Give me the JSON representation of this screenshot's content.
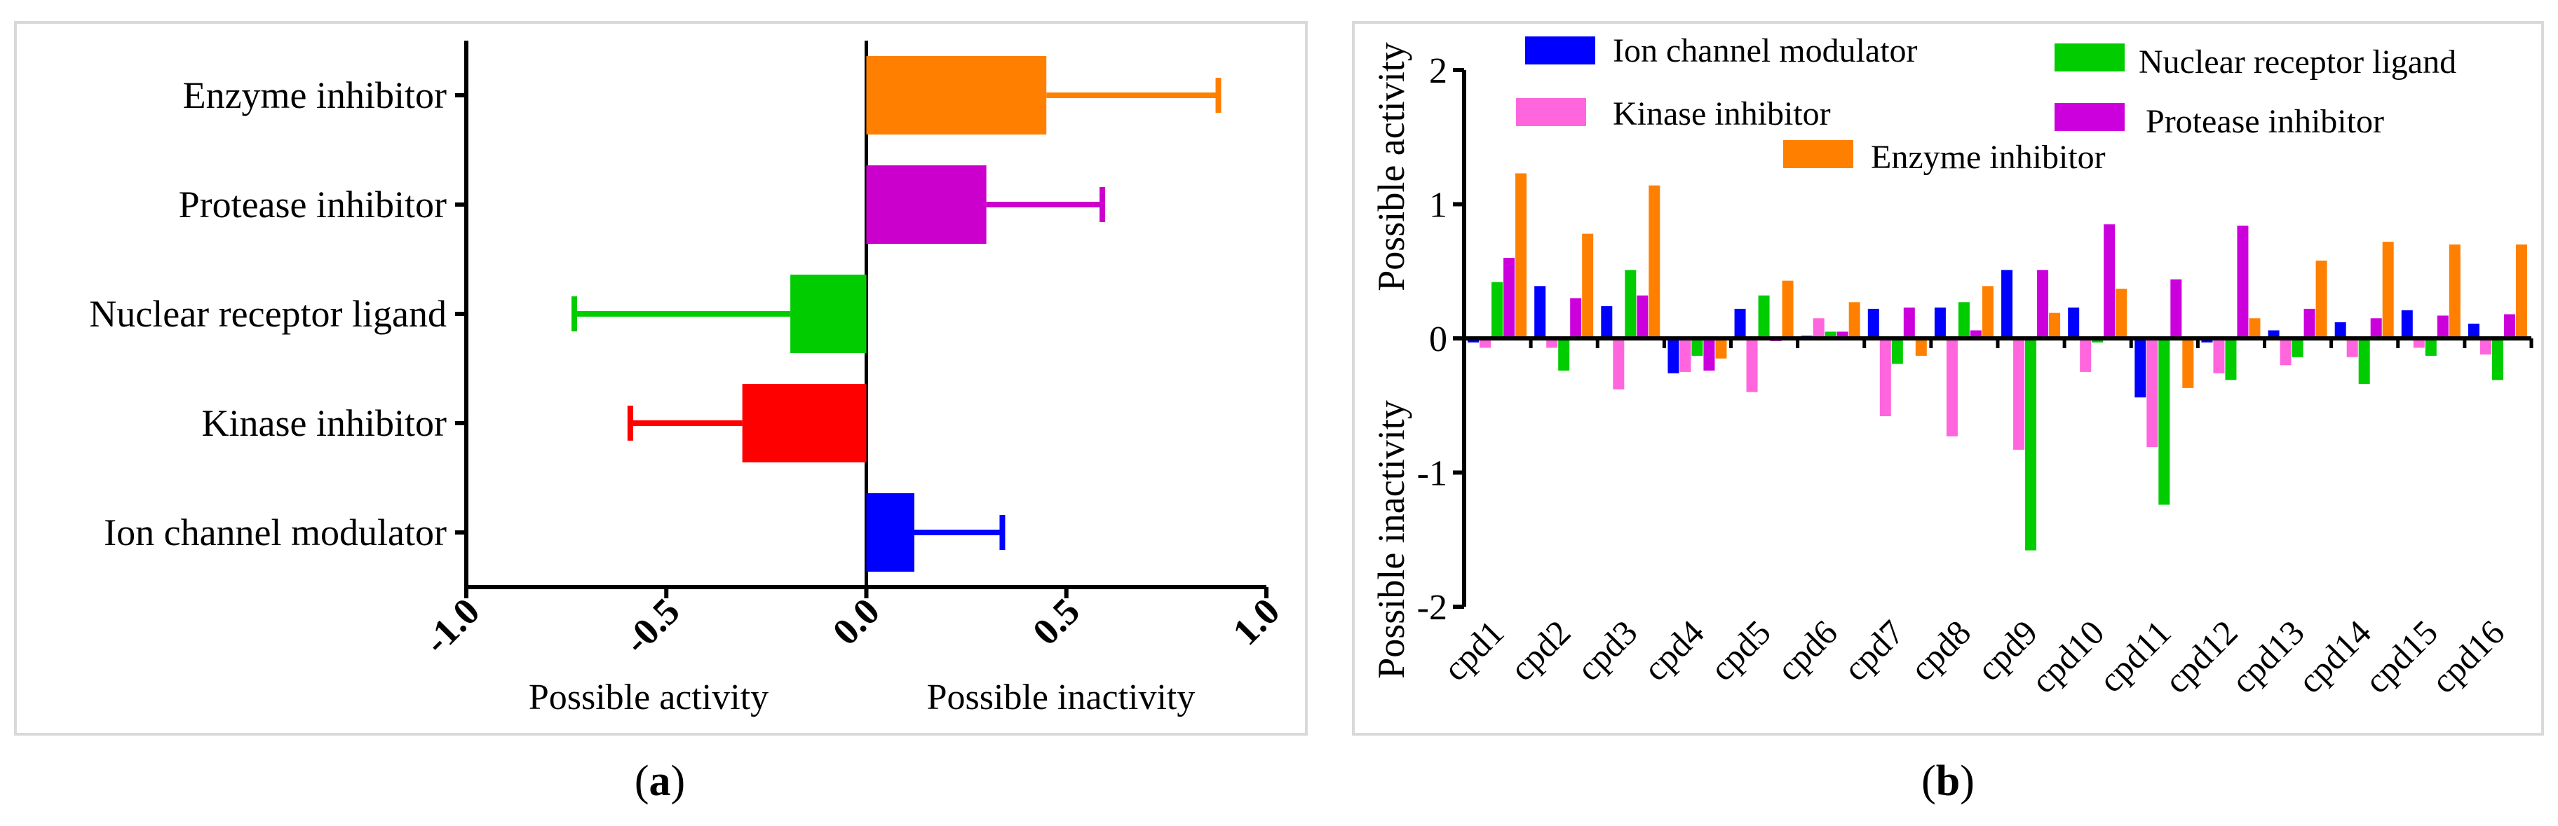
{
  "chart_data": [
    {
      "type": "bar",
      "orientation": "horizontal",
      "panel_label": "a",
      "categories": [
        "Ion channel modulator",
        "Kinase inhibitor",
        "Nuclear receptor ligand",
        "Protease inhibitor",
        "Enzyme inhibitor"
      ],
      "values": [
        0.12,
        -0.31,
        -0.19,
        0.3,
        0.45
      ],
      "errors": [
        0.22,
        0.28,
        0.54,
        0.29,
        0.43
      ],
      "colors": [
        "#0000ff",
        "#ff0000",
        "#00cc00",
        "#cc00cc",
        "#ff8000"
      ],
      "xlim": [
        -1.0,
        1.0
      ],
      "xticks": [
        "-1.0",
        "-0.5",
        "0.0",
        "0.5",
        "1.0"
      ],
      "xticks_values": [
        -1.0,
        -0.5,
        0.0,
        0.5,
        1.0
      ],
      "xlabel_left": "Possible activity",
      "xlabel_right": "Possible inactivity"
    },
    {
      "type": "bar",
      "panel_label": "b",
      "categories": [
        "cpd1",
        "cpd2",
        "cpd3",
        "cpd4",
        "cpd5",
        "cpd6",
        "cpd7",
        "cpd8",
        "cpd9",
        "cpd10",
        "cpd11",
        "cpd12",
        "cpd13",
        "cpd14",
        "cpd15",
        "cpd16"
      ],
      "series": [
        {
          "name": "Ion channel modulator",
          "color": "#0000ff",
          "values": [
            -0.03,
            0.39,
            0.24,
            -0.26,
            0.22,
            0.02,
            0.22,
            0.23,
            0.51,
            0.23,
            -0.44,
            -0.03,
            0.06,
            0.12,
            0.21,
            0.11
          ]
        },
        {
          "name": "Kinase inhibitor",
          "color": "#ff66dd",
          "values": [
            -0.07,
            -0.07,
            -0.38,
            -0.25,
            -0.4,
            0.15,
            -0.58,
            -0.73,
            -0.83,
            -0.25,
            -0.81,
            -0.26,
            -0.2,
            -0.14,
            -0.07,
            -0.12
          ]
        },
        {
          "name": "Nuclear receptor ligand",
          "color": "#00cc00",
          "values": [
            0.42,
            -0.24,
            0.51,
            -0.13,
            0.32,
            0.05,
            -0.19,
            0.27,
            -1.58,
            -0.03,
            -1.24,
            -0.31,
            -0.14,
            -0.34,
            -0.13,
            -0.31
          ]
        },
        {
          "name": "Protease inhibitor",
          "color": "#cc00dd",
          "values": [
            0.6,
            0.3,
            0.32,
            -0.24,
            -0.02,
            0.05,
            0.23,
            0.06,
            0.51,
            0.85,
            0.44,
            0.84,
            0.22,
            0.15,
            0.17,
            0.18
          ]
        },
        {
          "name": "Enzyme inhibitor",
          "color": "#ff8000",
          "values": [
            1.23,
            0.78,
            1.14,
            -0.15,
            0.43,
            0.27,
            -0.13,
            0.39,
            0.19,
            0.37,
            -0.37,
            0.15,
            0.58,
            0.72,
            0.7,
            0.7
          ]
        }
      ],
      "ylim": [
        -2,
        2
      ],
      "yticks": [
        "-2",
        "-1",
        "0",
        "1",
        "2"
      ],
      "yticks_values": [
        -2,
        -1,
        0,
        1,
        2
      ],
      "ylabel_top": "Possible activity",
      "ylabel_bottom": "Possible inactivity"
    }
  ]
}
